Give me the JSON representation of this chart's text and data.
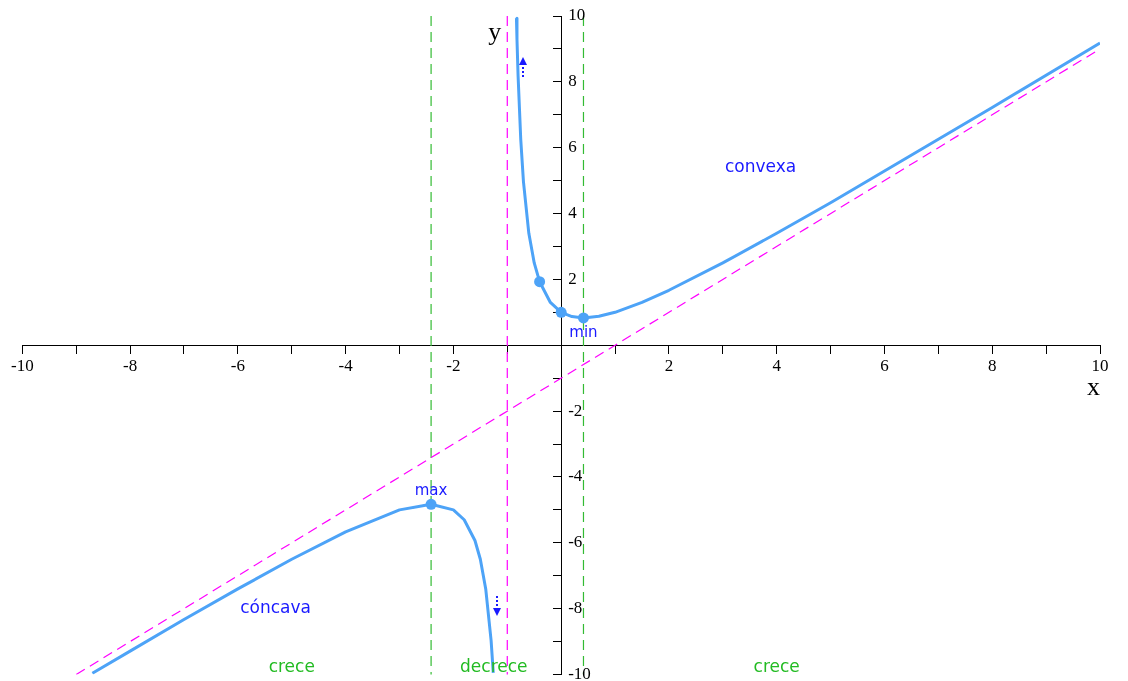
{
  "chart_data": {
    "type": "line",
    "xlabel": "x",
    "ylabel": "y",
    "xlim": [
      -10,
      10
    ],
    "ylim": [
      -10,
      10
    ],
    "xticks": [
      -10,
      {
        "value": -9,
        "label": null
      },
      -8,
      {
        "value": -7,
        "label": null
      },
      -6,
      {
        "value": -5,
        "label": null
      },
      -4,
      {
        "value": -3,
        "label": null
      },
      -2,
      {
        "value": -1,
        "label": null
      },
      {
        "value": 1,
        "label": null
      },
      2,
      {
        "value": 3,
        "label": null
      },
      4,
      {
        "value": 5,
        "label": null
      },
      6,
      {
        "value": 7,
        "label": null
      },
      8,
      {
        "value": 9,
        "label": null
      },
      10
    ],
    "yticks": [
      -10,
      {
        "value": -9,
        "label": null
      },
      -8,
      {
        "value": -7,
        "label": null
      },
      -6,
      {
        "value": -5,
        "label": null
      },
      -4,
      {
        "value": -3,
        "label": null
      },
      -2,
      {
        "value": -1,
        "label": null
      },
      {
        "value": 1,
        "label": null
      },
      2,
      {
        "value": 3,
        "label": null
      },
      4,
      {
        "value": 5,
        "label": null
      },
      6,
      {
        "value": 7,
        "label": null
      },
      8,
      {
        "value": 9,
        "label": null
      },
      10
    ],
    "grid": false,
    "legend": false,
    "marker": "none",
    "line_style": "solid",
    "series": [
      {
        "type": "line",
        "color": "#4da3f7",
        "x": [
          -0.83,
          -0.82,
          -0.8,
          -0.75,
          -0.7,
          -0.6,
          -0.5,
          -0.4,
          -0.2,
          0,
          0.2,
          0.414,
          0.7,
          1,
          1.5,
          2,
          3,
          4,
          5,
          6,
          8,
          10
        ],
        "values": [
          9.93,
          9.29,
          8.2,
          6.25,
          4.97,
          3.4,
          2.5,
          1.93,
          1.3,
          1,
          0.87,
          0.83,
          0.88,
          1,
          1.3,
          1.67,
          2.5,
          3.4,
          4.33,
          5.29,
          7.22,
          9.18
        ]
      },
      {
        "type": "line",
        "color": "#4da3f7",
        "x": [
          -8.7,
          -8,
          -7,
          -6,
          -5,
          -4,
          -3,
          -2.414,
          -2,
          -1.8,
          -1.6,
          -1.5,
          -1.4,
          -1.3,
          -1.26
        ],
        "values": [
          -9.96,
          -9.29,
          -8.33,
          -7.4,
          -6.5,
          -5.67,
          -5,
          -4.83,
          -5,
          -5.3,
          -5.93,
          -6.5,
          -7.4,
          -8.97,
          -9.95
        ]
      },
      {
        "type": "line",
        "color": "#ff00ff",
        "line_style": "dashed",
        "x": [
          -9,
          10
        ],
        "values": [
          -10,
          9
        ]
      },
      {
        "type": "scatter",
        "color": "#4da3f7",
        "marker": "circle",
        "x": [
          -2.414,
          0.414,
          0,
          -0.4
        ],
        "values": [
          -4.83,
          0.83,
          1,
          1.93
        ]
      }
    ],
    "ref_lines": [
      {
        "axis": "x",
        "value": -2.414,
        "color": "#33bb33",
        "line_style": "dashed"
      },
      {
        "axis": "x",
        "value": 0.414,
        "color": "#33bb33",
        "line_style": "dashed"
      },
      {
        "axis": "x",
        "value": -1,
        "color": "#ff00ff",
        "line_style": "dashed"
      }
    ],
    "annotations": [
      {
        "text": "max",
        "x": -2.414,
        "y": -4.83
      },
      {
        "text": "min",
        "x": 0.414,
        "y": 0.83
      },
      "convexa",
      "cóncava",
      "crece",
      "decrece",
      "crece"
    ]
  }
}
